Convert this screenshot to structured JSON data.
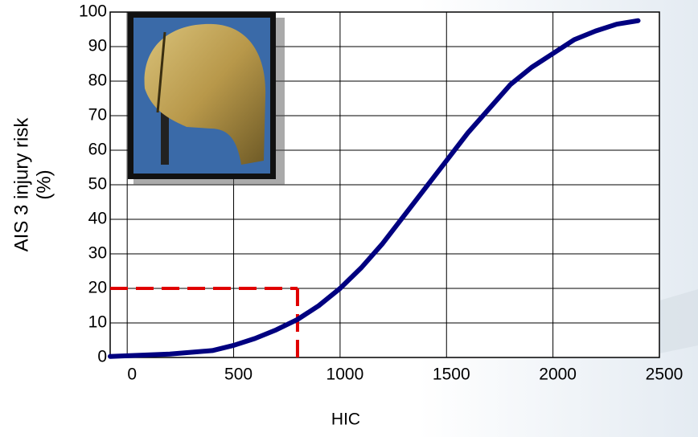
{
  "chart_data": {
    "type": "line",
    "xlabel": "HIC",
    "ylabel_lines": [
      "AIS 3 injury risk",
      "(%)"
    ],
    "x": [
      -80,
      0,
      200,
      400,
      500,
      600,
      700,
      800,
      900,
      1000,
      1100,
      1200,
      1300,
      1400,
      1500,
      1600,
      1700,
      1800,
      1900,
      2000,
      2100,
      2200,
      2300,
      2400
    ],
    "series": [
      {
        "color": "#000080",
        "values": [
          0.3,
          0.5,
          1,
          2,
          3.5,
          5.5,
          8,
          11,
          15,
          20,
          26,
          33,
          41,
          49,
          57,
          65,
          72,
          79,
          84,
          88,
          92,
          94.5,
          96.5,
          97.5
        ]
      }
    ],
    "reference": {
      "x": 800,
      "y": 20,
      "color": "#e00000"
    },
    "xlim": [
      -80,
      2500
    ],
    "xticks": [
      0,
      500,
      1000,
      1500,
      2000,
      2500
    ],
    "ylim": [
      0,
      100
    ],
    "yticks": [
      0,
      10,
      20,
      30,
      40,
      50,
      60,
      70,
      80,
      90,
      100
    ],
    "grid": true
  }
}
